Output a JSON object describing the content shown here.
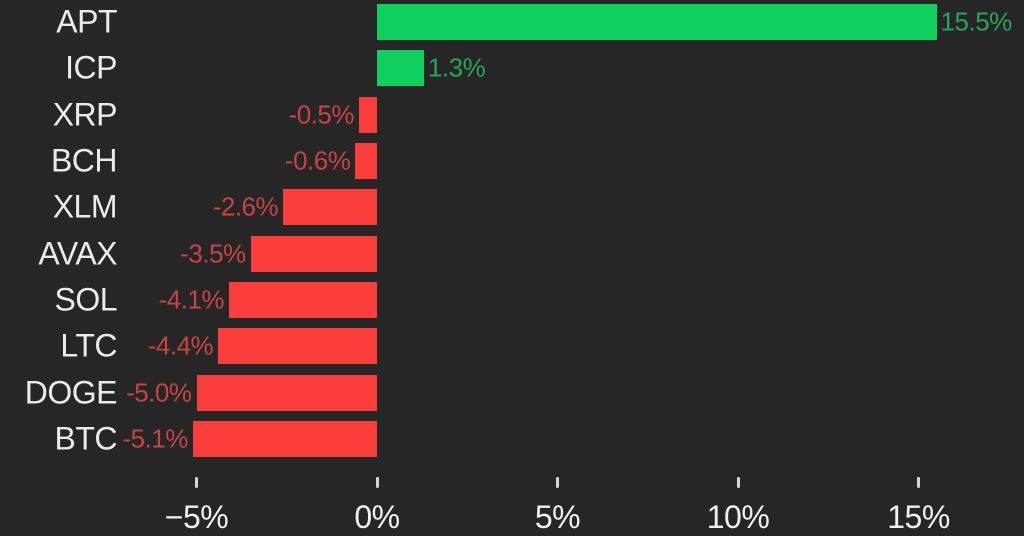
{
  "chart_data": {
    "type": "bar",
    "orientation": "horizontal",
    "title": "",
    "categories": [
      "APT",
      "ICP",
      "XRP",
      "BCH",
      "XLM",
      "AVAX",
      "SOL",
      "LTC",
      "DOGE",
      "BTC"
    ],
    "values": [
      15.5,
      1.3,
      -0.5,
      -0.6,
      -2.6,
      -3.5,
      -4.1,
      -4.4,
      -5.0,
      -5.1
    ],
    "value_labels": [
      "15.5%",
      "1.3%",
      "-0.5%",
      "-0.6%",
      "-2.6%",
      "-3.5%",
      "-4.1%",
      "-4.4%",
      "-5.0%",
      "-5.1%"
    ],
    "x_axis": {
      "tick_labels": [
        "−5%",
        "0%",
        "5%",
        "10%",
        "15%"
      ],
      "tick_values": [
        -5,
        0,
        5,
        10,
        15
      ],
      "range": [
        -10.4,
        17.9
      ]
    },
    "ylabel": "",
    "xlabel": "",
    "grid": "off",
    "legend": "none",
    "colors": {
      "background": "#262626",
      "bar_positive": "#0fd05e",
      "bar_negative": "#fb3d3b",
      "label_positive": "#2aa35c",
      "label_negative": "#c84443",
      "category_text": "#ebebeb",
      "axis_text": "#f0f0f0",
      "tick_mark": "#d6d6d6"
    }
  }
}
